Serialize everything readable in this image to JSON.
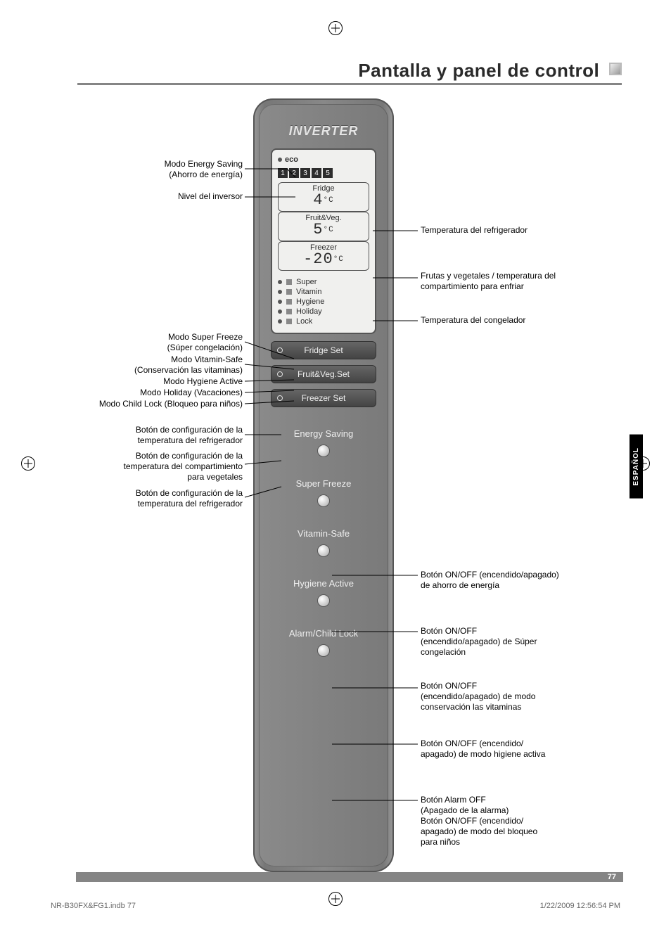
{
  "header": {
    "title": "Pantalla y panel de control"
  },
  "panel": {
    "brand": "INVERTER",
    "eco_label": "eco",
    "levels": [
      "1",
      "2",
      "3",
      "4",
      "5"
    ],
    "temps": [
      {
        "label": "Fridge",
        "value": "4",
        "unit": "°C"
      },
      {
        "label": "Fruit&Veg.",
        "value": "5",
        "unit": "°C"
      },
      {
        "label": "Freezer",
        "value": "-20",
        "unit": "°C"
      }
    ],
    "modes": [
      "Super",
      "Vitamin",
      "Hygiene",
      "Holiday",
      "Lock"
    ],
    "set_buttons": [
      "Fridge Set",
      "Fruit&Veg.Set",
      "Freezer Set"
    ],
    "func_buttons": [
      "Energy Saving",
      "Super Freeze",
      "Vitamin-Safe",
      "Hygiene Active",
      "Alarm/Child Lock"
    ]
  },
  "left_labels": {
    "eco": "Modo Energy Saving\n(Ahorro de energía)",
    "levels": "Nivel del inversor",
    "mode1": "Modo Super Freeze\n(Súper congelación)",
    "mode2": "Modo Vitamin-Safe\n(Conservación las vitaminas)",
    "mode3": "Modo Hygiene Active",
    "mode4": "Modo Holiday (Vacaciones)",
    "mode5": "Modo Child Lock (Bloqueo para niños)",
    "set1": "Botón de configuración de la\ntemperatura del refrigerador",
    "set2": "Botón de configuración de la\ntemperatura del compartimiento\npara vegetales",
    "set3": "Botón de configuración de la\ntemperatura del refrigerador"
  },
  "right_labels": {
    "t1": "Temperatura del refrigerador",
    "t2": "Frutas y vegetales / temperatura del\ncompartimiento para enfriar",
    "t3": "Temperatura del congelador",
    "f1": "Botón ON/OFF (encendido/apagado)\nde ahorro de energía",
    "f2": "Botón ON/OFF\n(encendido/apagado) de Súper\ncongelación",
    "f3": "Botón ON/OFF\n(encendido/apagado) de modo\nconservación las vitaminas",
    "f4": "Botón ON/OFF (encendido/\napagado) de modo higiene activa",
    "f5": "Botón Alarm OFF\n(Apagado de la alarma)\nBotón ON/OFF (encendido/\napagado) de modo del bloqueo\npara niños"
  },
  "lang_tab": "ESPAÑOL",
  "page_number": "77",
  "footer": {
    "left": "NR-B30FX&FG1.indb   77",
    "right": "1/22/2009   12:56:54 PM"
  },
  "colors": {
    "header_rule": "#858585",
    "panel_bg": "#808080",
    "lcd_bg": "#f0f0ee",
    "text": "#000000"
  }
}
